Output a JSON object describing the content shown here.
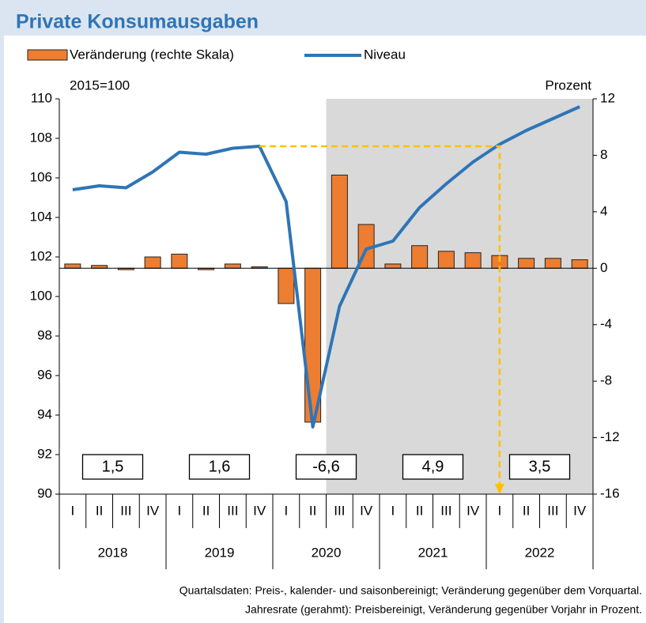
{
  "chart_data": {
    "type": "bar-line",
    "title": "Private Konsumausgaben",
    "ylabel": "2015=100",
    "y2label": "Prozent",
    "categories": [
      "I",
      "II",
      "III",
      "IV",
      "I",
      "II",
      "III",
      "IV",
      "I",
      "II",
      "III",
      "IV",
      "I",
      "II",
      "III",
      "IV",
      "I",
      "II",
      "III",
      "IV"
    ],
    "years": [
      "2018",
      "2019",
      "2020",
      "2021",
      "2022"
    ],
    "series": [
      {
        "name": "Veränderung (rechte Skala)",
        "type": "bar",
        "axis": "y2",
        "color": "#ed7d31",
        "values": [
          0.3,
          0.2,
          -0.1,
          0.8,
          1.0,
          -0.1,
          0.3,
          0.1,
          -2.5,
          -10.9,
          6.6,
          3.1,
          0.3,
          1.6,
          1.2,
          1.1,
          0.9,
          0.7,
          0.7,
          0.6
        ]
      },
      {
        "name": "Niveau",
        "type": "line",
        "color": "#2e75b6",
        "values": [
          105.4,
          105.6,
          105.5,
          106.3,
          107.3,
          107.2,
          107.5,
          107.6,
          104.8,
          93.4,
          99.5,
          102.4,
          102.8,
          104.5,
          105.7,
          106.8,
          107.7,
          108.4,
          109.0,
          109.6
        ]
      }
    ],
    "annual_rates": {
      "values": [
        1.5,
        1.6,
        -6.6,
        4.9,
        3.5
      ],
      "value_labels": [
        "1,5",
        "1,6",
        "-6,6",
        "4,9",
        "3,5"
      ]
    },
    "ylim": [
      90,
      110
    ],
    "yticks": [
      90,
      92,
      94,
      96,
      98,
      100,
      102,
      104,
      106,
      108,
      110
    ],
    "y2lim": [
      -16,
      12
    ],
    "y2ticks": [
      -16,
      -12,
      -8,
      -4,
      0,
      4,
      8,
      12
    ],
    "footnote": [
      "Quartalsdaten: Preis-, kalender- und saisonbereinigt; Veränderung gegenüber dem Vorquartal.",
      "Jahresrate (gerahmt): Preisbereinigt, Veränderung gegenüber Vorjahr in Prozent."
    ]
  }
}
